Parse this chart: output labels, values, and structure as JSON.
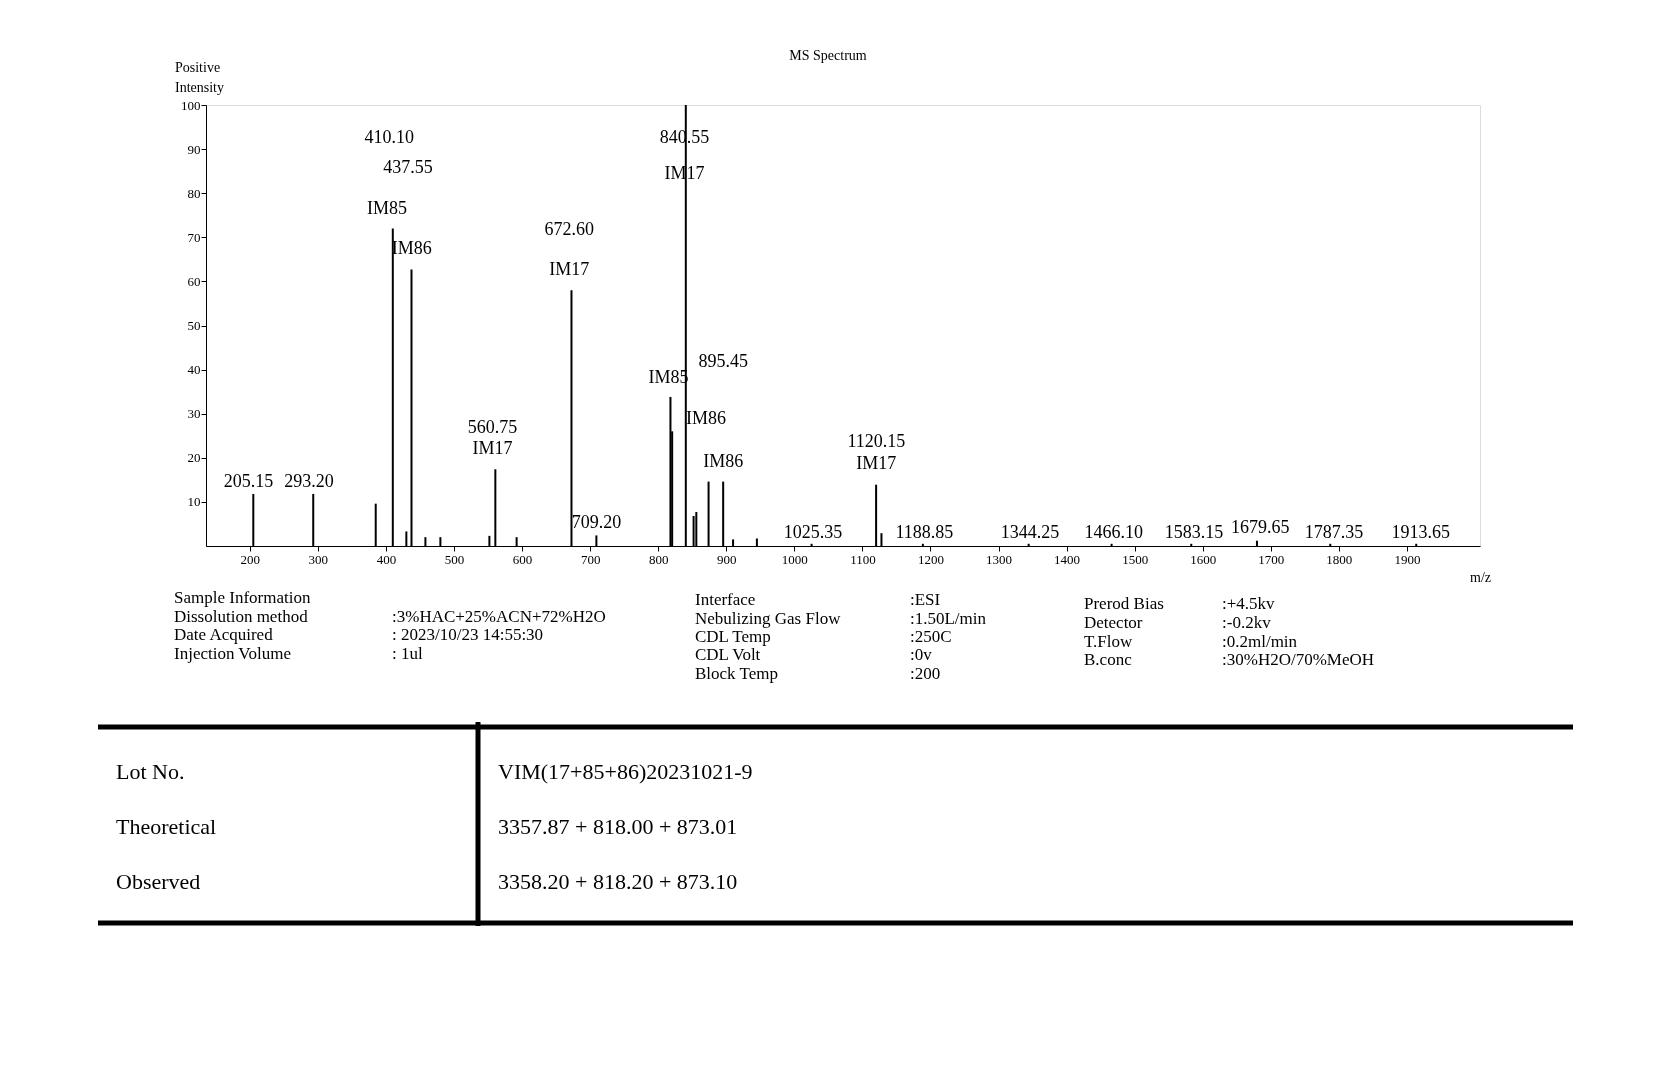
{
  "chart_data": {
    "type": "bar",
    "title": "MS Spectrum",
    "xlabel": "m/z",
    "ylabel": "Positive Intensity",
    "x": [
      205.15,
      293.2,
      385,
      410.1,
      430,
      437.55,
      458,
      480,
      552,
      560.75,
      592,
      672.6,
      709.2,
      818,
      820.5,
      840.55,
      852,
      856,
      874,
      895.45,
      910,
      945,
      1025.35,
      1120.15,
      1128,
      1188.85,
      1344.25,
      1466.1,
      1583.15,
      1679.65,
      1787.35,
      1913.65
    ],
    "values": [
      11.8,
      11.8,
      9.6,
      72.0,
      3.3,
      62.7,
      2.0,
      2.0,
      2.3,
      17.4,
      2.0,
      58.0,
      2.4,
      33.8,
      26.0,
      100,
      6.8,
      7.7,
      14.6,
      14.6,
      1.5,
      1.7,
      0.5,
      13.9,
      2.9,
      0.5,
      0.5,
      0.5,
      0.5,
      1.2,
      0.5,
      0.5
    ],
    "color": "#000000",
    "xlim": [
      143,
      2000
    ],
    "xticks": [
      200,
      300,
      400,
      500,
      600,
      700,
      800,
      900,
      1000,
      1100,
      1200,
      1300,
      1400,
      1500,
      1600,
      1700,
      1800,
      1900
    ],
    "ylim": [
      0,
      100
    ],
    "yticks": [
      10,
      20,
      30,
      40,
      50,
      60,
      70,
      80,
      90,
      100
    ],
    "grid": false,
    "annotations": [
      "205.15",
      "293.20",
      "410.10",
      "437.55",
      "IM85",
      "IM86",
      "560.75",
      "IM17",
      "672.60",
      "IM17",
      "709.20",
      "840.55",
      "IM17",
      "IM85",
      "895.45",
      "IM86",
      "IM86",
      "1120.15",
      "IM17",
      "1025.35",
      "1188.85",
      "1344.25",
      "1466.10",
      "1583.15",
      "1679.65",
      "1787.35",
      "1913.65",
      "Sample Information",
      "Dissolution method",
      ":3%HAC+25%ACN+72%H2O",
      "Date Acquired",
      ": 2023/10/23 14:55:30",
      "Injection Volume",
      ": 1ul",
      "Interface",
      ":ESI",
      "Nebulizing Gas Flow",
      ":1.50L/min",
      "CDL Temp",
      ":250C",
      "CDL Volt",
      ":0v",
      "Block Temp",
      ":200",
      "Prerod Bias",
      ":+4.5kv",
      "Detector",
      ":-0.2kv",
      "T.Flow",
      ":0.2ml/min",
      "B.conc",
      ":30%H2O/70%MeOH",
      "Lot No.",
      "VIM(17+85+86)20231021-9",
      "Theoretical",
      "3357.87 + 818.00 + 873.01",
      "Observed",
      "3358.20 + 818.20 + 873.10"
    ]
  }
}
